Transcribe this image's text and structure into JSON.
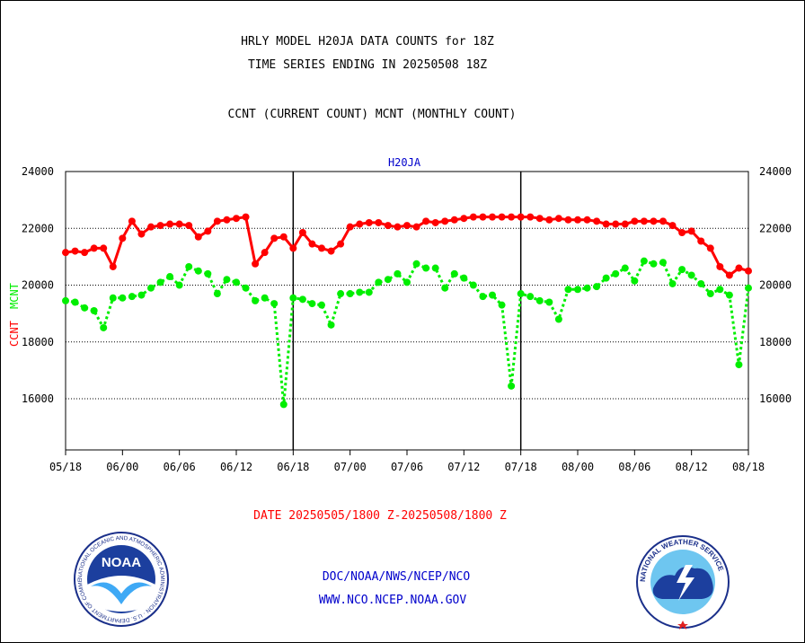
{
  "header": {
    "title_line1": "HRLY MODEL H20JA DATA COUNTS for 18Z",
    "title_line2": "TIME SERIES ENDING IN 20250508 18Z",
    "subtitle": "CCNT (CURRENT COUNT) MCNT (MONTHLY COUNT)"
  },
  "footer": {
    "date_range": "DATE 20250505/1800 Z-20250508/1800 Z",
    "org_line": "DOC/NOAA/NWS/NCEP/NCO",
    "url": "WWW.NCO.NCEP.NOAA.GOV",
    "noaa_logo_text": "NOAA",
    "noaa_ring_text": "NATIONAL OCEANIC AND ATMOSPHERIC ADMINISTRATION · U.S. DEPARTMENT OF COMMERCE",
    "nws_ring_text": "NATIONAL WEATHER SERVICE"
  },
  "chart_data": {
    "type": "line",
    "title": "H20JA",
    "ylabel_ccnt": "CCNT",
    "ylabel_mcnt": "MCNT",
    "ylim": [
      14200,
      24000
    ],
    "yticks": [
      16000,
      18000,
      20000,
      22000,
      24000
    ],
    "ytick_labels": [
      "16000",
      "18000",
      "20000",
      "22000",
      "24000"
    ],
    "xlim": [
      0,
      72
    ],
    "xticks": [
      0,
      6,
      12,
      18,
      24,
      30,
      36,
      42,
      48,
      54,
      60,
      66,
      72
    ],
    "xtick_labels": [
      "05/18",
      "06/00",
      "06/06",
      "06/12",
      "06/18",
      "07/00",
      "07/06",
      "07/12",
      "07/18",
      "08/00",
      "08/06",
      "08/12",
      "08/18"
    ],
    "day_dividers": [
      24,
      48
    ],
    "grid": true,
    "colors": {
      "ccnt": "#ff0000",
      "mcnt": "#00ee00",
      "axes": "#000000",
      "title": "#0000cc"
    },
    "series": [
      {
        "name": "CCNT",
        "x": [
          0,
          1,
          2,
          3,
          4,
          5,
          6,
          7,
          8,
          9,
          10,
          11,
          12,
          13,
          14,
          15,
          16,
          17,
          18,
          19,
          20,
          21,
          22,
          23,
          24,
          25,
          26,
          27,
          28,
          29,
          30,
          31,
          32,
          33,
          34,
          35,
          36,
          37,
          38,
          39,
          40,
          41,
          42,
          43,
          44,
          45,
          46,
          47,
          48,
          49,
          50,
          51,
          52,
          53,
          54,
          55,
          56,
          57,
          58,
          59,
          60,
          61,
          62,
          63,
          64,
          65,
          66,
          67,
          68,
          69,
          70,
          71,
          72
        ],
        "values": [
          21150,
          21200,
          21150,
          21300,
          21300,
          20650,
          21650,
          22250,
          21800,
          22050,
          22100,
          22150,
          22150,
          22100,
          21700,
          21900,
          22250,
          22300,
          22350,
          22400,
          20750,
          21150,
          21650,
          21700,
          21300,
          21850,
          21450,
          21300,
          21200,
          21450,
          22050,
          22150,
          22200,
          22200,
          22100,
          22050,
          22100,
          22050,
          22250,
          22200,
          22250,
          22300,
          22350,
          22400,
          22400,
          22400,
          22400,
          22400,
          22400,
          22400,
          22350,
          22300,
          22350,
          22300,
          22300,
          22300,
          22250,
          22150,
          22150,
          22150,
          22250,
          22250,
          22250,
          22250,
          22100,
          21850,
          21900,
          21550,
          21300,
          20650,
          20350,
          20600,
          20500
        ]
      },
      {
        "name": "MCNT",
        "x": [
          0,
          1,
          2,
          3,
          4,
          5,
          6,
          7,
          8,
          9,
          10,
          11,
          12,
          13,
          14,
          15,
          16,
          17,
          18,
          19,
          20,
          21,
          22,
          23,
          24,
          25,
          26,
          27,
          28,
          29,
          30,
          31,
          32,
          33,
          34,
          35,
          36,
          37,
          38,
          39,
          40,
          41,
          42,
          43,
          44,
          45,
          46,
          47,
          48,
          49,
          50,
          51,
          52,
          53,
          54,
          55,
          56,
          57,
          58,
          59,
          60,
          61,
          62,
          63,
          64,
          65,
          66,
          67,
          68,
          69,
          70,
          71,
          72
        ],
        "values": [
          19450,
          19400,
          19200,
          19100,
          18500,
          19550,
          19550,
          19600,
          19650,
          19900,
          20100,
          20300,
          20000,
          20650,
          20500,
          20400,
          19700,
          20200,
          20100,
          19900,
          19450,
          19550,
          19350,
          15800,
          19550,
          19500,
          19350,
          19300,
          18600,
          19700,
          19700,
          19750,
          19750,
          20100,
          20200,
          20400,
          20100,
          20750,
          20600,
          20600,
          19900,
          20400,
          20250,
          20000,
          19600,
          19650,
          19300,
          16450,
          19700,
          19600,
          19450,
          19400,
          18800,
          19850,
          19850,
          19900,
          19950,
          20250,
          20400,
          20600,
          20150,
          20850,
          20750,
          20800,
          20050,
          20550,
          20350,
          20050,
          19700,
          19850,
          19650,
          17200,
          19900
        ]
      }
    ]
  }
}
